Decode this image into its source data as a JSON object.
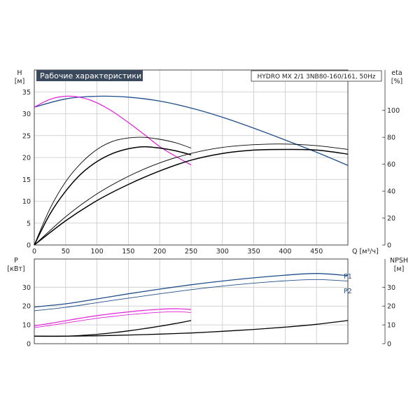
{
  "title_badge": "Рабочие характеристики",
  "model_label": "HYDRO MX 2/1 3NB80-160/161, 50Hz",
  "colors": {
    "blue": "#1f4e8c",
    "magenta": "#e020d8",
    "black": "#000000",
    "badge_bg": "#3a4a5c"
  },
  "chart_data": [
    {
      "type": "line",
      "title": "Рабочие характеристики",
      "y_label": "H",
      "y_unit": "[м]",
      "y2_label": "eta",
      "y2_unit": "[%]",
      "x_label": "Q [м³/ч]",
      "xlim": [
        0,
        500
      ],
      "ylim": [
        0,
        40
      ],
      "y2lim": [
        0,
        130
      ],
      "x_ticks": [
        0,
        50,
        100,
        150,
        200,
        250,
        300,
        350,
        400,
        450
      ],
      "y_ticks": [
        0,
        5,
        10,
        15,
        20,
        25,
        30,
        35
      ],
      "y2_ticks": [
        0,
        20,
        40,
        60,
        80,
        100
      ],
      "grid": true,
      "series": [
        {
          "color": "blue",
          "width": 1.3,
          "axis": "left",
          "x": [
            0,
            50,
            100,
            150,
            200,
            250,
            300,
            350,
            400,
            450,
            500
          ],
          "y": [
            31.5,
            33.4,
            34.0,
            33.8,
            32.9,
            31.3,
            29.2,
            26.7,
            24.0,
            21.2,
            18.2
          ]
        },
        {
          "color": "magenta",
          "width": 1.2,
          "axis": "left",
          "x": [
            0,
            25,
            50,
            75,
            100,
            125,
            150,
            175,
            200,
            225,
            250
          ],
          "y": [
            31.5,
            33.3,
            34.0,
            33.7,
            32.5,
            30.5,
            28.0,
            25.3,
            22.5,
            20.3,
            18.3
          ]
        },
        {
          "color": "black",
          "width": 0.9,
          "axis": "right",
          "x": [
            0,
            25,
            50,
            75,
            100,
            125,
            150,
            175,
            200,
            225,
            250
          ],
          "y": [
            0,
            27,
            47,
            61,
            71,
            77,
            79.5,
            80,
            78.5,
            76,
            72
          ]
        },
        {
          "color": "black",
          "width": 1.5,
          "axis": "right",
          "x": [
            0,
            25,
            50,
            75,
            100,
            125,
            150,
            175,
            200,
            225,
            250
          ],
          "y": [
            0,
            23,
            40,
            53,
            62,
            68,
            71.5,
            73,
            72,
            70,
            67
          ]
        },
        {
          "color": "black",
          "width": 0.9,
          "axis": "right",
          "x": [
            0,
            50,
            100,
            150,
            200,
            250,
            300,
            350,
            400,
            450,
            500
          ],
          "y": [
            0,
            21,
            38,
            51,
            61,
            68,
            72.5,
            74.5,
            75,
            73.8,
            71
          ]
        },
        {
          "color": "black",
          "width": 1.5,
          "axis": "right",
          "x": [
            0,
            50,
            100,
            150,
            200,
            250,
            300,
            350,
            400,
            450,
            500
          ],
          "y": [
            0,
            18,
            33,
            45,
            55,
            63,
            68,
            70.5,
            71,
            70.5,
            67.5
          ]
        }
      ]
    },
    {
      "type": "line",
      "y_label": "P",
      "y_unit": "[кВт]",
      "y2_label": "NPSH",
      "y2_unit": "[м]",
      "xlim": [
        0,
        500
      ],
      "ylim": [
        0,
        45
      ],
      "y2lim": [
        0,
        45
      ],
      "y_ticks": [
        0,
        10,
        20,
        30
      ],
      "y2_ticks": [
        0,
        10,
        20,
        30
      ],
      "grid": true,
      "series": [
        {
          "name": "P1",
          "color": "blue",
          "width": 1.3,
          "axis": "left",
          "x": [
            0,
            50,
            100,
            150,
            200,
            250,
            300,
            350,
            400,
            450,
            500
          ],
          "y": [
            19.5,
            21.2,
            23.8,
            26.5,
            29.0,
            31.3,
            33.3,
            35.0,
            36.4,
            37.3,
            36.2
          ]
        },
        {
          "name": "P2",
          "color": "blue",
          "width": 0.9,
          "axis": "left",
          "x": [
            0,
            50,
            100,
            150,
            200,
            250,
            300,
            350,
            400,
            450,
            500
          ],
          "y": [
            17.5,
            19.3,
            21.8,
            24.2,
            26.5,
            28.7,
            30.6,
            32.2,
            33.4,
            34.1,
            33.3
          ]
        },
        {
          "color": "magenta",
          "width": 1.2,
          "axis": "left",
          "x": [
            0,
            25,
            50,
            75,
            100,
            125,
            150,
            175,
            200,
            225,
            250
          ],
          "y": [
            9.5,
            10.8,
            12.2,
            13.6,
            14.9,
            16.0,
            16.9,
            17.7,
            18.3,
            18.6,
            18.2
          ]
        },
        {
          "color": "magenta",
          "width": 0.9,
          "axis": "left",
          "x": [
            0,
            25,
            50,
            75,
            100,
            125,
            150,
            175,
            200,
            225,
            250
          ],
          "y": [
            8.5,
            9.7,
            11.0,
            12.3,
            13.5,
            14.5,
            15.4,
            16.1,
            16.7,
            17.0,
            16.6
          ]
        },
        {
          "color": "black",
          "width": 1.3,
          "axis": "right",
          "x": [
            0,
            25,
            50,
            75,
            100,
            125,
            150,
            175,
            200,
            225,
            250
          ],
          "y": [
            4.0,
            3.9,
            4.0,
            4.4,
            5.0,
            5.8,
            6.8,
            8.0,
            9.3,
            10.7,
            12.3
          ]
        },
        {
          "color": "black",
          "width": 1.3,
          "axis": "right",
          "x": [
            0,
            50,
            100,
            150,
            200,
            250,
            300,
            350,
            400,
            450,
            500
          ],
          "y": [
            4.0,
            4.0,
            4.2,
            4.6,
            5.1,
            5.7,
            6.6,
            7.6,
            8.8,
            10.3,
            12.3
          ]
        }
      ],
      "annotations": [
        "P1",
        "P2"
      ]
    }
  ]
}
